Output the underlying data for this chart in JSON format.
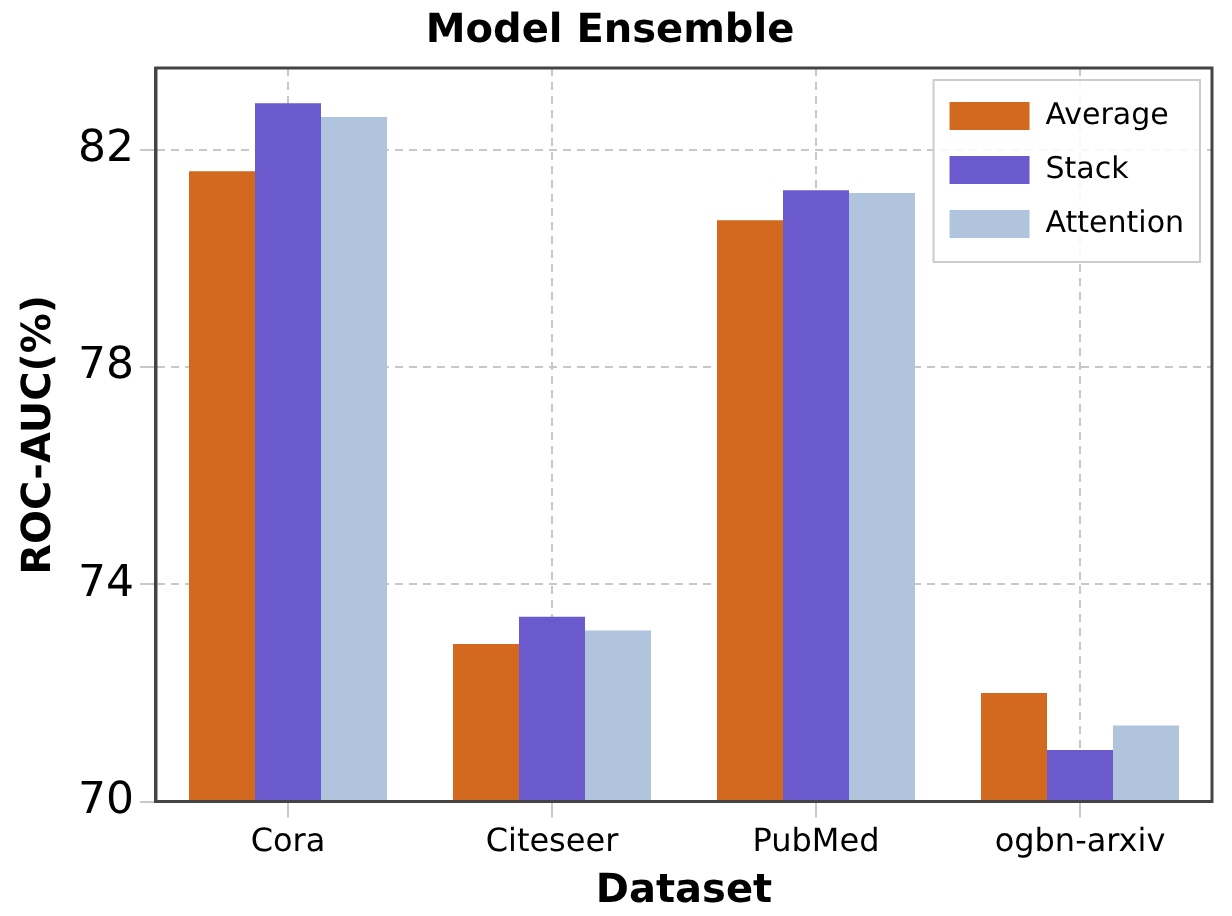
{
  "chart_data": {
    "type": "bar",
    "title": "Model Ensemble",
    "xlabel": "Dataset",
    "ylabel": "ROC-AUC(%)",
    "categories": [
      "Cora",
      "Citeseer",
      "PubMed",
      "ogbn-arxiv"
    ],
    "series": [
      {
        "name": "Average",
        "color": "#d2691e",
        "values": [
          81.6,
          72.9,
          80.7,
          72.0
        ]
      },
      {
        "name": "Stack",
        "color": "#6a5acd",
        "values": [
          82.85,
          73.4,
          81.25,
          70.95
        ]
      },
      {
        "name": "Attention",
        "color": "#b0c4de",
        "values": [
          82.6,
          73.15,
          81.2,
          71.4
        ]
      }
    ],
    "ylim": [
      70,
      83.5
    ],
    "yticks": [
      70,
      74,
      78,
      82
    ],
    "grid": true,
    "legend": "top right"
  }
}
